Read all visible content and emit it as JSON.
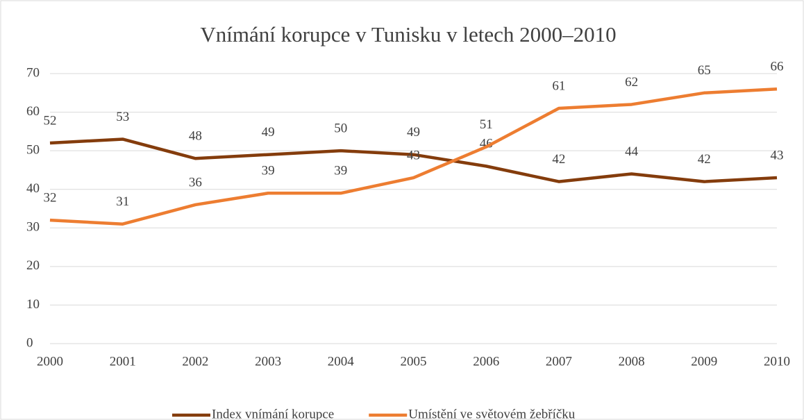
{
  "chart_data": {
    "type": "line",
    "title": "Vnímání korupce v Tunisku v letech 2000–2010",
    "categories": [
      "2000",
      "2001",
      "2002",
      "2003",
      "2004",
      "2005",
      "2006",
      "2007",
      "2008",
      "2009",
      "2010"
    ],
    "series": [
      {
        "name": "Index vnímání korupce",
        "color": "#843c0c",
        "values": [
          52,
          53,
          48,
          49,
          50,
          49,
          46,
          42,
          44,
          42,
          43
        ]
      },
      {
        "name": "Umístění ve světovém žebříčku",
        "color": "#ed7d31",
        "values": [
          32,
          31,
          36,
          39,
          39,
          43,
          51,
          61,
          62,
          65,
          66
        ]
      }
    ],
    "ylim": [
      0,
      70
    ],
    "yticks": [
      0,
      10,
      20,
      30,
      40,
      50,
      60,
      70
    ],
    "grid": true,
    "legend": "bottom"
  }
}
